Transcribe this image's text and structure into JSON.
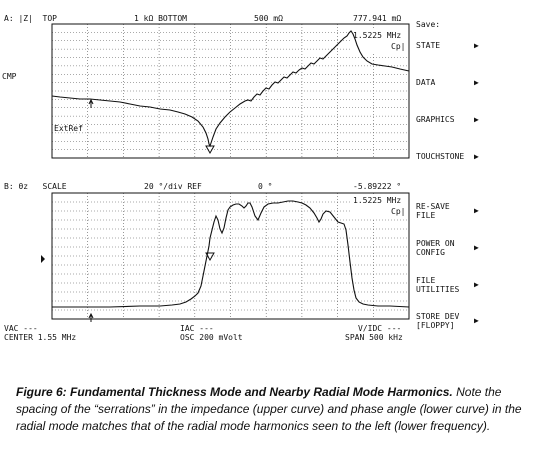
{
  "upper": {
    "header_left": "A: |Z|  TOP",
    "header_mid1": "1 kΩ BOTTOM",
    "header_mid2": "500 mΩ",
    "marker_value": "777.941 mΩ",
    "marker_freq": "1.5225 MHz",
    "marker_param": "Cp|",
    "side_label": "CMP",
    "extref_label": "ExtRef"
  },
  "lower": {
    "header_left": "B: θz   SCALE",
    "header_mid1": "20 °/div REF",
    "header_mid2": "0 °",
    "marker_value": "-5.89222 °",
    "marker_freq": "1.5225 MHz",
    "marker_param": "Cp|"
  },
  "footer": {
    "vac": "VAC ---",
    "center": "CENTER 1.55 MHz",
    "iac": "IAC ---",
    "osc": "OSC 200 mVolt",
    "vdc": "V/IDC ---",
    "span": "SPAN 500 kHz"
  },
  "softkeys_top": {
    "title": "Save:",
    "items": [
      "STATE",
      "DATA",
      "GRAPHICS",
      "TOUCHSTONE"
    ]
  },
  "softkeys_bottom": {
    "items": [
      [
        "RE-SAVE",
        "FILE"
      ],
      [
        "POWER ON",
        "CONFIG"
      ],
      [
        "FILE",
        "UTILITIES"
      ],
      [
        "STORE DEV",
        "[FLOPPY]"
      ]
    ]
  },
  "caption": {
    "figure": "Figure 6:  Fundamental Thickness Mode and Nearby Radial Mode Harmonics.",
    "text": " Note the spacing of the “serrations” in the impedance (upper curve) and phase angle (lower curve) in the radial mode matches that of the radial mode harmonics seen to the left (lower frequency)."
  }
}
